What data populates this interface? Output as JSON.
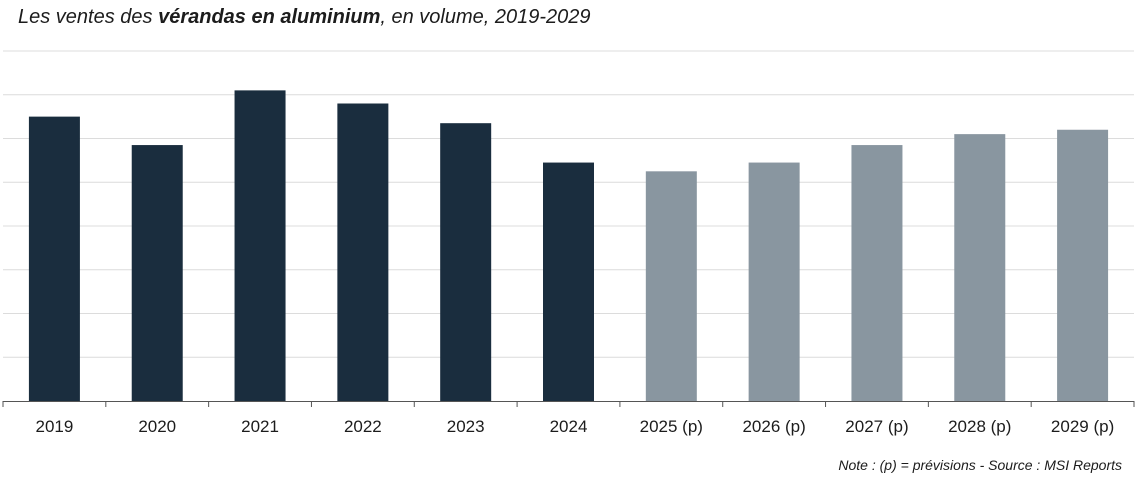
{
  "title": {
    "prefix": "Les ventes des ",
    "emphasis": "vérandas en aluminium",
    "suffix": ", en volume, 2019-2029"
  },
  "note": "Note : (p) = prévisions - Source : MSI Reports",
  "colors": {
    "actual": "#1a2d3e",
    "forecast": "#8996a0",
    "grid": "#dcdcdc",
    "axis": "#555555",
    "text": "#1c1c1c"
  },
  "chart_data": {
    "type": "bar",
    "categories": [
      "2019",
      "2020",
      "2021",
      "2022",
      "2023",
      "2024",
      "2025 (p)",
      "2026 (p)",
      "2027 (p)",
      "2028 (p)",
      "2029 (p)"
    ],
    "values": [
      6.5,
      5.85,
      7.1,
      6.8,
      6.35,
      5.45,
      5.25,
      5.45,
      5.85,
      6.1,
      6.2
    ],
    "forecast": [
      false,
      false,
      false,
      false,
      false,
      false,
      true,
      true,
      true,
      true,
      true
    ],
    "ylim": [
      0,
      8
    ],
    "grid": true,
    "grid_step": 1,
    "y_tick_labels_shown": false,
    "legend": "none",
    "xlabel": "",
    "ylabel": ""
  }
}
